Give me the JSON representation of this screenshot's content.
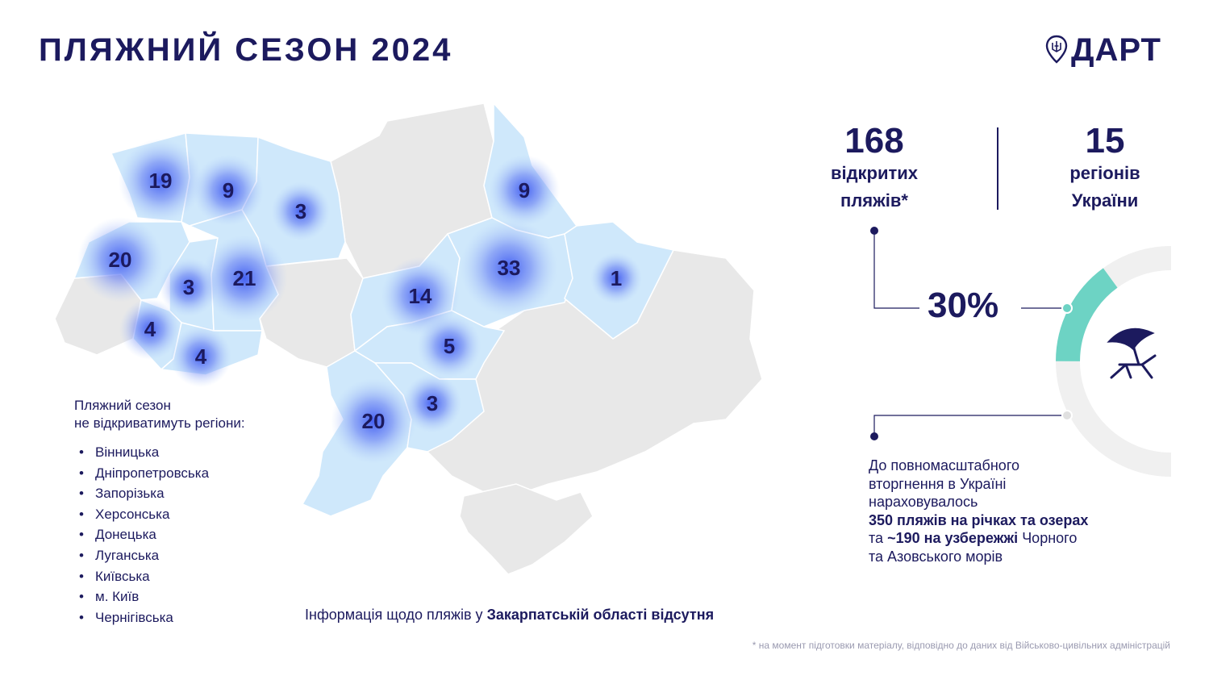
{
  "title": "ПЛЯЖНИЙ СЕЗОН 2024",
  "logo": {
    "text": "ДАРТ",
    "icon": "map-pin-trident-icon"
  },
  "colors": {
    "accent": "#1c1a5e",
    "open_region": "#cfe8fb",
    "other_region": "#e8e8e8",
    "bubble": "#3d5af1",
    "ring_teal": "#6dd3c4",
    "ring_grey": "#f0f0f0"
  },
  "stats": {
    "beaches_count": "168",
    "beaches_label_1": "відкритих",
    "beaches_label_2": "пляжів*",
    "regions_count": "15",
    "regions_label_1": "регіонів",
    "regions_label_2": "України"
  },
  "percent": {
    "text": "30%",
    "value": 0.3
  },
  "prewar": {
    "line1": "До повномасштабного",
    "line2": "вторгнення в Україні",
    "line3": "нараховувалось",
    "line4_bold": "350 пляжів на річках та озерах",
    "line5_pre": "та ",
    "line5_bold": "~190 на узбережжі",
    "line5_post": " Чорного",
    "line6": "та Азовського морів"
  },
  "legend": {
    "head1": "Пляжний сезон",
    "head2": "не відкриватимуть регіони:",
    "items": [
      "Вінницька",
      "Дніпропетровська",
      "Запорізька",
      "Херсонська",
      "Донецька",
      "Луганська",
      "Київська",
      "м. Київ",
      "Чернігівська"
    ]
  },
  "note": {
    "pre": "Інформація щодо пляжів у ",
    "bold": "Закарпатській області відсутня"
  },
  "footnote": "* на момент підготовки матеріалу, відповідно до даних від Військово-цивільних адміністрацій",
  "map_badges": [
    {
      "value": "19",
      "region": "Волинська"
    },
    {
      "value": "9",
      "region": "Рівненська"
    },
    {
      "value": "3",
      "region": "Житомирська"
    },
    {
      "value": "9",
      "region": "Сумська"
    },
    {
      "value": "20",
      "region": "Львівська"
    },
    {
      "value": "3",
      "region": "Тернопільська"
    },
    {
      "value": "21",
      "region": "Хмельницька"
    },
    {
      "value": "33",
      "region": "Полтавська"
    },
    {
      "value": "1",
      "region": "Харківська"
    },
    {
      "value": "14",
      "region": "Черкаська"
    },
    {
      "value": "4",
      "region": "Івано-Франківська"
    },
    {
      "value": "4",
      "region": "Чернівецька"
    },
    {
      "value": "5",
      "region": "Кіровоградська"
    },
    {
      "value": "20",
      "region": "Одеська"
    },
    {
      "value": "3",
      "region": "Миколаївська"
    }
  ]
}
